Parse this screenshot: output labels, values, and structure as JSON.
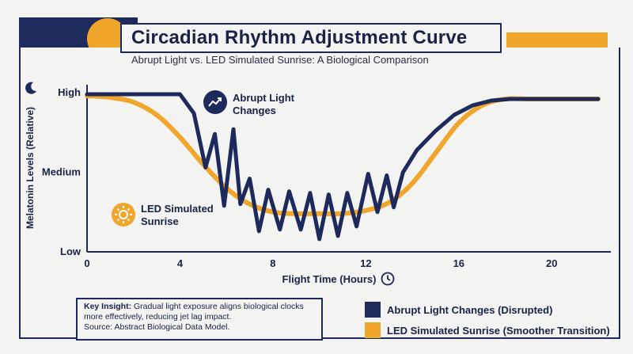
{
  "header": {
    "title": "Circadian Rhythm Adjustment Curve",
    "subtitle": "Abrupt Light vs. LED Simulated Sunrise: A Biological Comparison"
  },
  "insight": {
    "label": "Key Insight:",
    "text": "Gradual light exposure aligns biological clocks more effectively, reducing jet lag impact.",
    "source": "Source: Abstract Biological Data Model."
  },
  "annotations": {
    "abrupt": [
      "Abrupt Light",
      "Changes"
    ],
    "led": [
      "LED Simulated",
      "Sunrise"
    ]
  },
  "legend": [
    {
      "label": "Abrupt Light Changes (Disrupted)",
      "color": "#1e2a5c"
    },
    {
      "label": "LED Simulated Sunrise (Smoother Transition)",
      "color": "#f0a52b"
    }
  ],
  "colors": {
    "navy": "#1e2a5c",
    "gold": "#f0a52b"
  },
  "icons": [
    "moon-icon",
    "trend-up-icon",
    "sun-icon",
    "clock-icon"
  ],
  "chart_data": {
    "type": "line",
    "xlabel": "Flight Time (Hours)",
    "ylabel": "Melatonin Levels (Relative)",
    "xlim": [
      0,
      22
    ],
    "ylim": [
      0,
      10
    ],
    "x_ticks": [
      0,
      4,
      8,
      12,
      16,
      20
    ],
    "y_ticks": [
      {
        "value": 0,
        "label": "Low"
      },
      {
        "value": 5,
        "label": "Medium"
      },
      {
        "value": 10,
        "label": "High"
      }
    ],
    "grid": false,
    "legend_position": "bottom-right",
    "series": [
      {
        "name": "Abrupt Light Changes (Disrupted)",
        "color": "#1e2a5c",
        "x": [
          0,
          1,
          2,
          3,
          4,
          4.6,
          5.1,
          5.5,
          5.9,
          6.3,
          6.6,
          7.0,
          7.4,
          7.8,
          8.3,
          8.7,
          9.2,
          9.6,
          10.0,
          10.4,
          10.8,
          11.2,
          11.6,
          12.1,
          12.5,
          12.9,
          13.2,
          13.6,
          14.2,
          15.0,
          15.8,
          16.6,
          17.4,
          18.2,
          19.0,
          20.0,
          21.0,
          22.0
        ],
        "y": [
          9.9,
          9.9,
          9.9,
          9.9,
          9.9,
          8.7,
          5.3,
          7.4,
          2.9,
          7.7,
          3.0,
          4.6,
          1.3,
          3.9,
          1.4,
          3.8,
          1.4,
          3.7,
          0.8,
          3.6,
          1.0,
          3.7,
          1.6,
          4.9,
          2.5,
          4.8,
          2.8,
          5.0,
          6.4,
          7.6,
          8.6,
          9.2,
          9.5,
          9.6,
          9.6,
          9.6,
          9.6,
          9.6
        ]
      },
      {
        "name": "LED Simulated Sunrise (Smoother Transition)",
        "color": "#f0a52b",
        "x": [
          0,
          1,
          2,
          3,
          4,
          5,
          6,
          7,
          8,
          9,
          10,
          11,
          12,
          13,
          14,
          15,
          16,
          17,
          18,
          19,
          20,
          21,
          22
        ],
        "y": [
          9.8,
          9.7,
          9.4,
          8.6,
          7.2,
          5.5,
          4.0,
          3.0,
          2.5,
          2.4,
          2.4,
          2.4,
          2.6,
          3.1,
          4.3,
          6.2,
          8.1,
          9.2,
          9.6,
          9.6,
          9.6,
          9.6,
          9.6
        ]
      }
    ]
  }
}
